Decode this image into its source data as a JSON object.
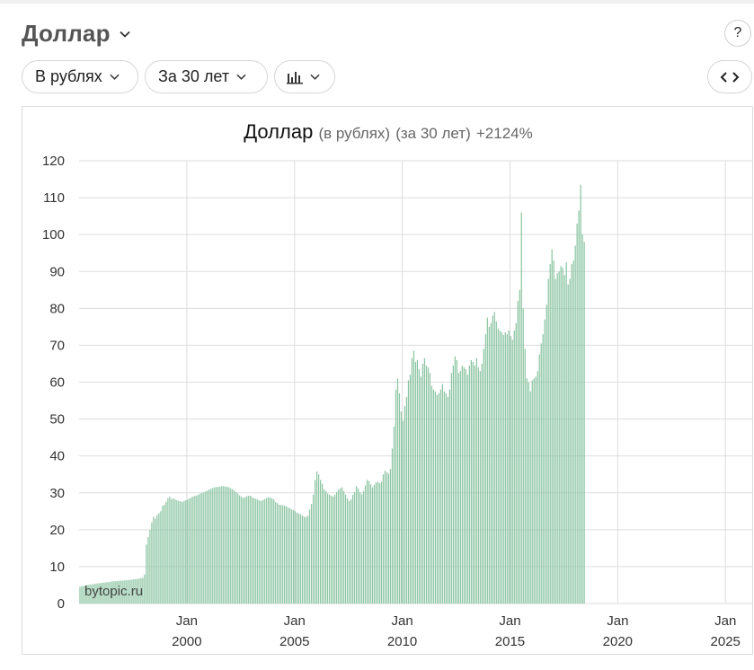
{
  "header": {
    "title": "Доллар",
    "help_label": "?"
  },
  "toolbar": {
    "currency_mode": "В рублях",
    "period": "За 30 лет",
    "chart_type_icon": "bar-chart-icon",
    "embed_label": "<>"
  },
  "colors": {
    "bar": "#8cc5a3",
    "bar_edge": "#6fb08b",
    "grid": "#dddddd",
    "title_gray": "#555555"
  },
  "chart_data": {
    "type": "bar",
    "title": "Доллар",
    "title_parts": [
      "(в рублях)",
      "(за 30 лет)",
      "+2124%"
    ],
    "watermark": "bytopic.ru",
    "ylim": [
      0,
      120
    ],
    "y_ticks": [
      0,
      10,
      20,
      30,
      40,
      50,
      60,
      70,
      80,
      90,
      100,
      110,
      120
    ],
    "xlim": [
      1995.0,
      2025.2
    ],
    "x_ticks": [
      {
        "x": 2000,
        "line1": "Jan",
        "line2": "2000"
      },
      {
        "x": 2005,
        "line1": "Jan",
        "line2": "2005"
      },
      {
        "x": 2010,
        "line1": "Jan",
        "line2": "2010"
      },
      {
        "x": 2015,
        "line1": "Jan",
        "line2": "2015"
      },
      {
        "x": 2020,
        "line1": "Jan",
        "line2": "2020"
      },
      {
        "x": 2025,
        "line1": "Jan",
        "line2": "2025"
      }
    ],
    "grid": true,
    "x_step_years": 0.0833,
    "x_start": 1995.0,
    "values": [
      4.5,
      4.7,
      4.8,
      4.9,
      5.0,
      5.1,
      5.2,
      5.2,
      5.3,
      5.4,
      5.5,
      5.5,
      5.6,
      5.7,
      5.7,
      5.8,
      5.8,
      5.9,
      6.0,
      6.0,
      6.1,
      6.1,
      6.2,
      6.2,
      6.2,
      6.3,
      6.3,
      6.4,
      6.4,
      6.5,
      6.6,
      6.6,
      6.7,
      6.8,
      6.9,
      7.0,
      7.9,
      16.0,
      18.0,
      20.0,
      22.0,
      23.5,
      23.0,
      24.0,
      24.5,
      25.0,
      26.5,
      26.8,
      27.5,
      28.5,
      29.0,
      28.3,
      28.5,
      28.2,
      28.0,
      27.8,
      27.7,
      27.5,
      27.8,
      28.0,
      28.2,
      28.5,
      28.8,
      29.0,
      29.2,
      29.3,
      29.5,
      29.8,
      30.0,
      30.1,
      30.4,
      30.6,
      30.9,
      31.1,
      31.3,
      31.5,
      31.6,
      31.6,
      31.7,
      31.8,
      31.8,
      31.7,
      31.6,
      31.5,
      31.2,
      31.0,
      30.6,
      30.2,
      29.8,
      29.3,
      28.9,
      28.6,
      28.8,
      29.1,
      29.2,
      29.2,
      28.8,
      28.5,
      28.4,
      28.2,
      27.9,
      27.8,
      28.1,
      28.3,
      28.6,
      28.8,
      28.7,
      28.5,
      28.2,
      27.5,
      27.2,
      26.8,
      26.7,
      26.6,
      26.5,
      26.3,
      26.0,
      25.8,
      25.5,
      25.3,
      25.0,
      24.6,
      24.4,
      24.2,
      23.8,
      23.5,
      23.5,
      23.8,
      25.5,
      27.0,
      29.5,
      33.5,
      35.8,
      35.0,
      33.5,
      32.5,
      31.0,
      30.5,
      29.8,
      29.5,
      29.2,
      29.0,
      29.5,
      30.2,
      30.8,
      31.2,
      31.5,
      30.5,
      29.5,
      28.5,
      27.8,
      28.2,
      29.5,
      30.2,
      31.8,
      31.2,
      30.2,
      29.6,
      30.5,
      32.0,
      33.5,
      33.2,
      32.3,
      31.5,
      32.2,
      32.8,
      33.0,
      32.6,
      33.0,
      35.0,
      36.0,
      35.5,
      35.2,
      36.5,
      42.0,
      48.0,
      58.0,
      61.0,
      57.0,
      52.0,
      49.5,
      53.5,
      56.0,
      60.5,
      62.0,
      66.5,
      68.5,
      65.5,
      66.0,
      63.5,
      61.5,
      65.0,
      66.5,
      64.5,
      64.0,
      62.5,
      59.0,
      58.0,
      57.5,
      56.5,
      57.0,
      58.0,
      59.5,
      57.5,
      57.0,
      56.0,
      58.0,
      62.5,
      64.5,
      67.0,
      66.0,
      62.5,
      63.0,
      64.5,
      64.0,
      63.5,
      62.0,
      64.5,
      66.0,
      65.5,
      64.5,
      66.5,
      64.0,
      63.0,
      65.0,
      69.0,
      73.0,
      77.5,
      75.0,
      76.0,
      78.0,
      79.0,
      76.5,
      74.5,
      74.0,
      73.5,
      72.8,
      73.5,
      73.0,
      74.0,
      72.5,
      71.5,
      74.0,
      76.0,
      82.0,
      85.0,
      106.0,
      80.0,
      69.0,
      61.0,
      60.0,
      57.5,
      60.5,
      61.0,
      61.5,
      63.0,
      67.5,
      70.5,
      73.0,
      77.0,
      81.0,
      88.0,
      92.0,
      96.0,
      93.0,
      88.0,
      89.5,
      90.0,
      91.5,
      91.0,
      89.0,
      92.5,
      86.5,
      88.0,
      92.0,
      93.0,
      97.0,
      103.0,
      106.5,
      113.5,
      100.0,
      98.0
    ]
  }
}
